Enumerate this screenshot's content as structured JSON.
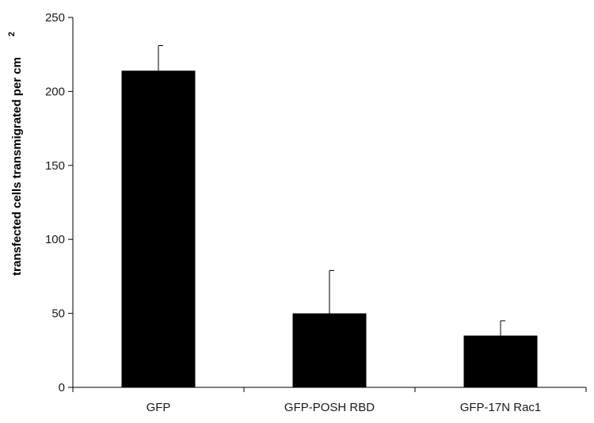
{
  "chart_data": {
    "type": "bar",
    "categories": [
      "GFP",
      "GFP-POSH RBD",
      "GFP-17N Rac1"
    ],
    "values": [
      214,
      50,
      35
    ],
    "error_upper": [
      231,
      79,
      45
    ],
    "xlabel": "",
    "ylabel": "transfected cells transmigrated per cm",
    "ylabel_superscript": "2",
    "ylim": [
      0,
      250
    ],
    "yticks": [
      0,
      50,
      100,
      150,
      200,
      250
    ],
    "grid": false,
    "bar_color": "#000000"
  }
}
